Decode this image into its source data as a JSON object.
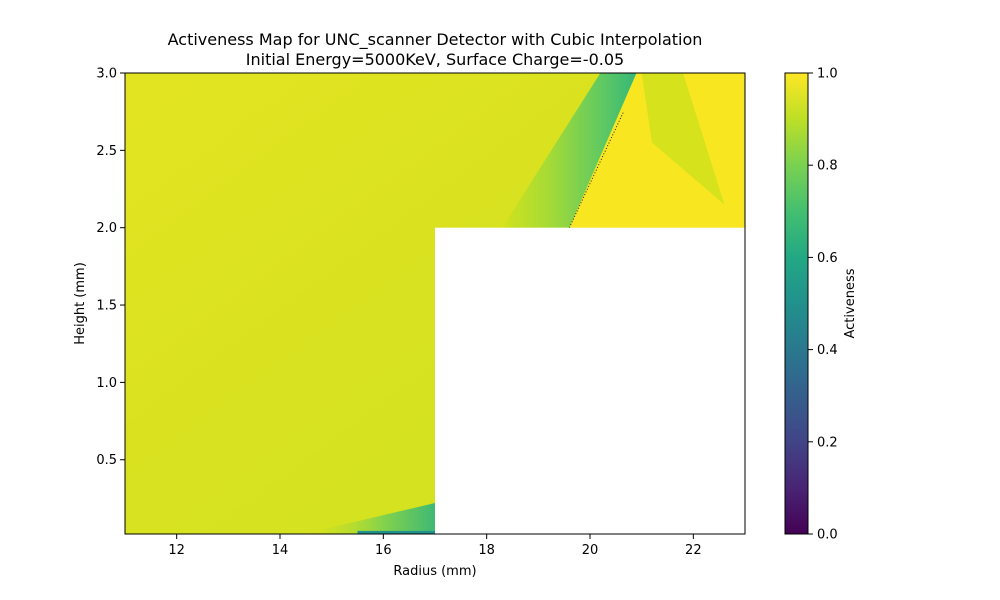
{
  "chart_data": {
    "type": "heatmap",
    "title": "Activeness Map for UNC_scanner Detector with Cubic Interpolation",
    "subtitle": "Initial Energy=5000KeV, Surface Charge=-0.05",
    "xlabel": "Radius (mm)",
    "ylabel": "Height (mm)",
    "xlim": [
      11,
      23
    ],
    "ylim": [
      0.02,
      3.0
    ],
    "x_ticks": [
      "12",
      "14",
      "16",
      "18",
      "20",
      "22"
    ],
    "y_ticks": [
      "0.5",
      "1.0",
      "1.5",
      "2.0",
      "2.5",
      "3.0"
    ],
    "masked_region": {
      "x": [
        17,
        23
      ],
      "y": [
        0.02,
        2.0
      ]
    },
    "colorbar": {
      "label": "Activeness",
      "colormap": "viridis",
      "range": [
        0.0,
        1.0
      ],
      "ticks": [
        "0.0",
        "0.2",
        "0.4",
        "0.6",
        "0.8",
        "1.0"
      ]
    },
    "features": [
      {
        "region": "background",
        "activeness": 0.95
      },
      {
        "region": "diagonal band above step",
        "x_bottom": [
          18.3,
          19.6
        ],
        "x_top": [
          20.2,
          20.9
        ],
        "activeness": 0.75
      },
      {
        "region": "region right of band",
        "activeness": 0.99
      },
      {
        "region": "faint streak right of band",
        "activeness": 0.9
      },
      {
        "region": "streak near bottom",
        "x": [
          15.5,
          17.0
        ],
        "activeness": 0.7
      }
    ]
  }
}
